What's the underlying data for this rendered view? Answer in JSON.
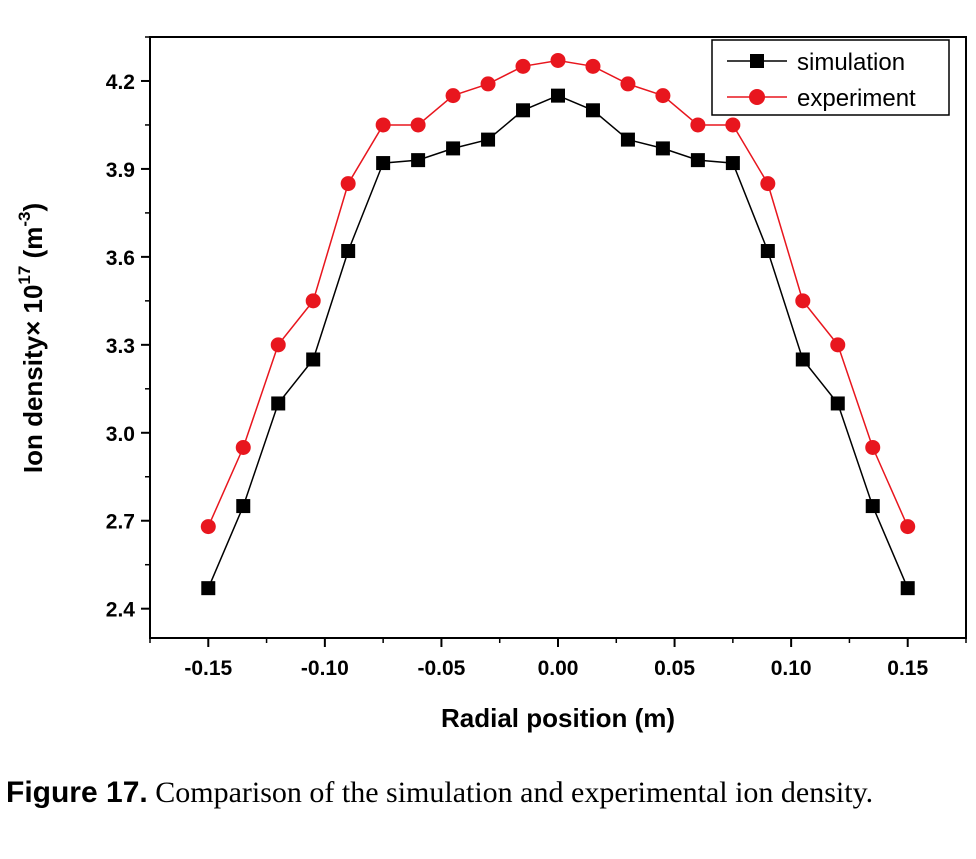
{
  "chart_data": {
    "type": "line",
    "xlabel": "Radial position (m)",
    "ylabel": {
      "main": "Ion density× 10",
      "exp": "17",
      "unit_open": " (m",
      "unit_exp": "-3",
      "unit_close": ")"
    },
    "xlim": [
      -0.175,
      0.175
    ],
    "ylim": [
      2.3,
      4.35
    ],
    "x_ticks": [
      -0.15,
      -0.1,
      -0.05,
      0.0,
      0.05,
      0.1,
      0.15
    ],
    "x_tick_labels": [
      "-0.15",
      "-0.10",
      "-0.05",
      "0.00",
      "0.05",
      "0.10",
      "0.15"
    ],
    "y_ticks": [
      2.4,
      2.7,
      3.0,
      3.3,
      3.6,
      3.9,
      4.2
    ],
    "y_tick_labels": [
      "2.4",
      "2.7",
      "3.0",
      "3.3",
      "3.6",
      "3.9",
      "4.2"
    ],
    "legend_position": "top-right",
    "x": [
      -0.15,
      -0.135,
      -0.12,
      -0.105,
      -0.09,
      -0.075,
      -0.06,
      -0.045,
      -0.03,
      -0.015,
      0.0,
      0.015,
      0.03,
      0.045,
      0.06,
      0.075,
      0.09,
      0.105,
      0.12,
      0.135,
      0.15
    ],
    "series": [
      {
        "name": "simulation",
        "color": "#000000",
        "marker": "square",
        "values": [
          2.47,
          2.75,
          3.1,
          3.25,
          3.62,
          3.92,
          3.93,
          3.97,
          4.0,
          4.1,
          4.15,
          4.1,
          4.0,
          3.97,
          3.93,
          3.92,
          3.62,
          3.25,
          3.1,
          2.75,
          2.47
        ]
      },
      {
        "name": "experiment",
        "color": "#e8161e",
        "marker": "circle",
        "values": [
          2.68,
          2.95,
          3.3,
          3.45,
          3.85,
          4.05,
          4.05,
          4.15,
          4.19,
          4.25,
          4.27,
          4.25,
          4.19,
          4.15,
          4.05,
          4.05,
          3.85,
          3.45,
          3.3,
          2.95,
          2.68
        ]
      }
    ]
  },
  "caption": {
    "label": "Figure 17.",
    "text": " Comparison of the simulation and experimental ion density."
  }
}
